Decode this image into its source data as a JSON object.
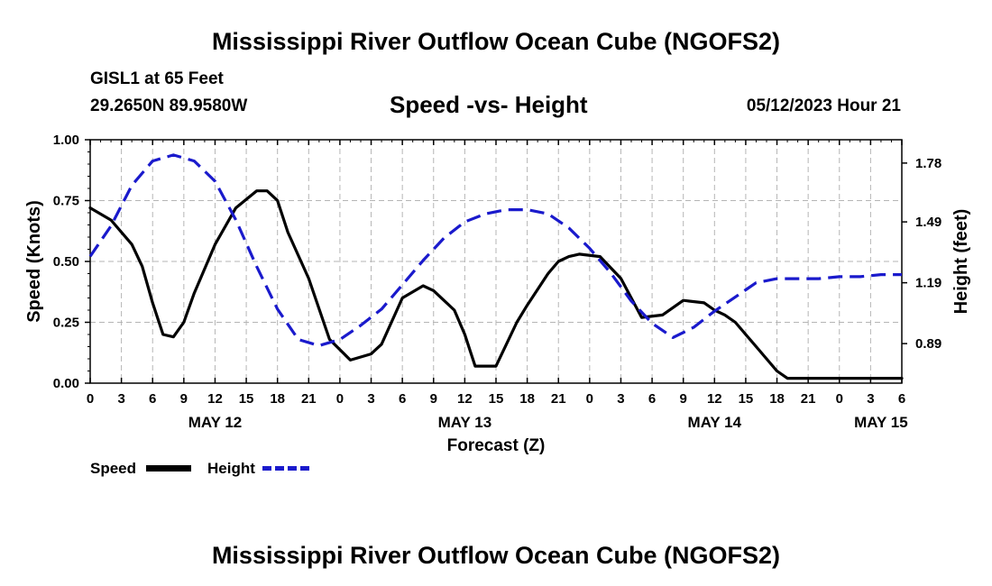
{
  "page": {
    "title_top": "Mississippi River Outflow Ocean Cube (NGOFS2)",
    "station": "GISL1 at 65 Feet",
    "coords": "29.2650N  89.9580W",
    "subtitle": "Speed -vs- Height",
    "datetime": "05/12/2023 Hour 21",
    "title_bottom": "Mississippi River Outflow Ocean Cube (NGOFS2)"
  },
  "chart_data": {
    "type": "line",
    "title": "Speed -vs- Height",
    "xlabel": "Forecast (Z)",
    "ylabel": "Speed (Knots)",
    "y2label": "Height (feet)",
    "xlim": [
      0,
      78
    ],
    "ylim": [
      0,
      1
    ],
    "y2lim": [
      0.695,
      1.895
    ],
    "grid": true,
    "x_tick_hours": [
      0,
      3,
      6,
      9,
      12,
      15,
      18,
      21,
      24,
      27,
      30,
      33,
      36,
      39,
      42,
      45,
      48,
      51,
      54,
      57,
      60,
      63,
      66,
      69,
      72,
      75,
      78
    ],
    "x_tick_labels": [
      "0",
      "3",
      "6",
      "9",
      "12",
      "15",
      "18",
      "21",
      "0",
      "3",
      "6",
      "9",
      "12",
      "15",
      "18",
      "21",
      "0",
      "3",
      "6",
      "9",
      "12",
      "15",
      "18",
      "21",
      "0",
      "3",
      "6"
    ],
    "date_labels": [
      {
        "hour": 12,
        "label": "MAY 12"
      },
      {
        "hour": 36,
        "label": "MAY 13"
      },
      {
        "hour": 60,
        "label": "MAY 14"
      },
      {
        "hour": 76,
        "label": "MAY 15"
      }
    ],
    "y_ticks": [
      0,
      0.25,
      0.5,
      0.75,
      1.0
    ],
    "y_tick_labels": [
      "0.00",
      "0.25",
      "0.50",
      "0.75",
      "1.00"
    ],
    "y2_ticks": [
      0.89,
      1.19,
      1.49,
      1.78
    ],
    "y2_tick_labels": [
      "0.89",
      "1.19",
      "1.49",
      "1.78"
    ],
    "series": [
      {
        "name": "Speed",
        "axis": "left",
        "color": "#000000",
        "dash": "solid",
        "x": [
          0,
          2,
          4,
          5,
          6,
          7,
          8,
          9,
          10,
          12,
          14,
          16,
          17,
          18,
          19,
          21,
          23,
          25,
          27,
          28,
          30,
          32,
          33,
          35,
          36,
          37,
          39,
          41,
          42,
          44,
          45,
          46,
          47,
          49,
          51,
          53,
          55,
          57,
          59,
          60,
          61,
          62,
          63,
          64,
          65,
          66,
          67,
          69,
          71,
          72,
          74,
          76,
          78
        ],
        "y": [
          0.72,
          0.67,
          0.57,
          0.48,
          0.33,
          0.2,
          0.19,
          0.25,
          0.37,
          0.57,
          0.72,
          0.79,
          0.79,
          0.75,
          0.62,
          0.43,
          0.18,
          0.095,
          0.12,
          0.16,
          0.35,
          0.4,
          0.38,
          0.3,
          0.2,
          0.07,
          0.07,
          0.25,
          0.32,
          0.45,
          0.5,
          0.52,
          0.53,
          0.52,
          0.43,
          0.27,
          0.28,
          0.34,
          0.33,
          0.3,
          0.28,
          0.25,
          0.2,
          0.15,
          0.1,
          0.05,
          0.02,
          0.02,
          0.02,
          0.02,
          0.02,
          0.02,
          0.02
        ]
      },
      {
        "name": "Height",
        "axis": "right",
        "color": "#1a1acc",
        "dash": "dashed",
        "x": [
          0,
          2,
          4,
          6,
          8,
          10,
          12,
          14,
          16,
          18,
          20,
          22,
          24,
          26,
          28,
          30,
          32,
          34,
          36,
          38,
          40,
          42,
          44,
          46,
          48,
          50,
          52,
          54,
          56,
          58,
          60,
          62,
          64,
          66,
          68,
          70,
          72,
          74,
          76,
          78
        ],
        "y": [
          1.32,
          1.47,
          1.67,
          1.79,
          1.82,
          1.79,
          1.69,
          1.5,
          1.27,
          1.06,
          0.91,
          0.88,
          0.91,
          0.98,
          1.06,
          1.18,
          1.3,
          1.41,
          1.49,
          1.53,
          1.55,
          1.55,
          1.53,
          1.46,
          1.36,
          1.24,
          1.1,
          0.99,
          0.92,
          0.97,
          1.05,
          1.12,
          1.19,
          1.21,
          1.21,
          1.21,
          1.22,
          1.22,
          1.23,
          1.23
        ]
      }
    ],
    "legend": [
      {
        "label": "Speed",
        "color": "#000000",
        "dash": "solid"
      },
      {
        "label": "Height",
        "color": "#1a1acc",
        "dash": "dashed"
      }
    ]
  }
}
